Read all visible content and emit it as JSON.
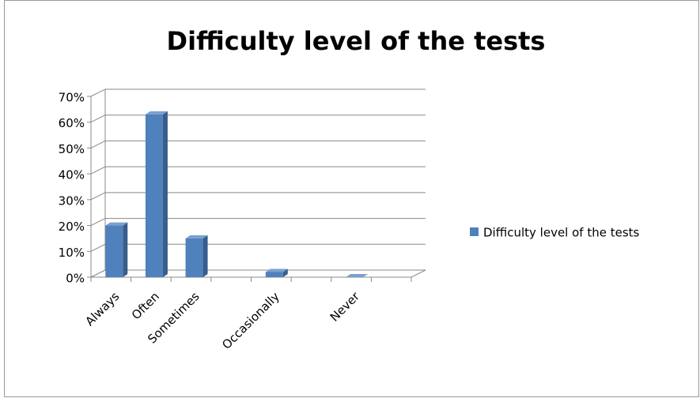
{
  "chart_data": {
    "type": "bar3d",
    "title": "Difficulty level of the tests",
    "categories": [
      "Always",
      "Often",
      "Sometimes",
      null,
      "Occasionally",
      null,
      "Never",
      null
    ],
    "series": [
      {
        "name": "Difficulty level of the tests",
        "color": "#4f81bd",
        "values": [
          20,
          63,
          15,
          null,
          2,
          null,
          0,
          null
        ]
      }
    ],
    "ylim": [
      0,
      70
    ],
    "yticks": [
      {
        "value": 0,
        "label": "0%"
      },
      {
        "value": 10,
        "label": "10%"
      },
      {
        "value": 20,
        "label": "20%"
      },
      {
        "value": 30,
        "label": "30%"
      },
      {
        "value": 40,
        "label": "40%"
      },
      {
        "value": 50,
        "label": "50%"
      },
      {
        "value": 60,
        "label": "60%"
      },
      {
        "value": 70,
        "label": "70%"
      }
    ],
    "grid": true,
    "legend": "right"
  }
}
